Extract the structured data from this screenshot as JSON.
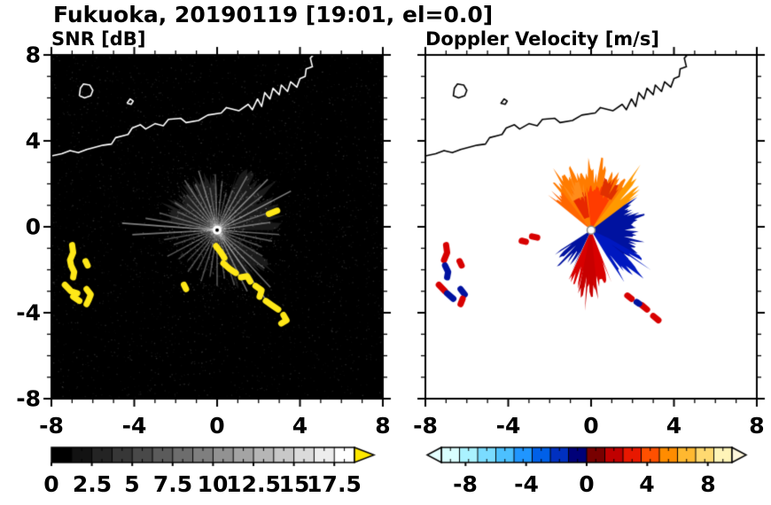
{
  "title": "Fukuoka, 20190119 [19:01, el=0.0]",
  "axes": {
    "y_tick_labels": [
      "8",
      "4",
      "0",
      "-4",
      "-8"
    ],
    "x_tick_labels": [
      "-8",
      "-4",
      "0",
      "4",
      "8"
    ]
  },
  "map": {
    "coastline": [
      [
        -8,
        3.3
      ],
      [
        -7.5,
        3.4
      ],
      [
        -7.1,
        3.55
      ],
      [
        -6.7,
        3.45
      ],
      [
        -6.3,
        3.6
      ],
      [
        -5.9,
        3.7
      ],
      [
        -5.5,
        3.8
      ],
      [
        -5.1,
        3.85
      ],
      [
        -4.9,
        4.15
      ],
      [
        -4.5,
        4.25
      ],
      [
        -4.3,
        4.3
      ],
      [
        -4.1,
        4.6
      ],
      [
        -3.7,
        4.75
      ],
      [
        -3.45,
        4.55
      ],
      [
        -3,
        4.8
      ],
      [
        -2.6,
        4.7
      ],
      [
        -2.35,
        5
      ],
      [
        -1.75,
        5.05
      ],
      [
        -1.5,
        4.85
      ],
      [
        -0.9,
        4.95
      ],
      [
        -0.45,
        5.2
      ],
      [
        0.2,
        5.3
      ],
      [
        0.45,
        5.55
      ],
      [
        1.05,
        5.4
      ],
      [
        1.5,
        5.7
      ],
      [
        1.7,
        5.45
      ],
      [
        1.95,
        5.95
      ],
      [
        2.15,
        5.6
      ],
      [
        2.3,
        6.25
      ],
      [
        2.55,
        5.95
      ],
      [
        2.7,
        6.45
      ],
      [
        3,
        6.15
      ],
      [
        3.1,
        6.6
      ],
      [
        3.4,
        6.3
      ],
      [
        3.55,
        6.75
      ],
      [
        3.85,
        6.5
      ],
      [
        4,
        6.9
      ],
      [
        4.25,
        7
      ],
      [
        4.3,
        7.35
      ],
      [
        4.6,
        7.45
      ],
      [
        4.5,
        7.85
      ],
      [
        4.65,
        8
      ]
    ],
    "island": [
      [
        -6.65,
        6.1
      ],
      [
        -6.4,
        6
      ],
      [
        -6.1,
        6.1
      ],
      [
        -6,
        6.35
      ],
      [
        -6.15,
        6.6
      ],
      [
        -6.45,
        6.65
      ],
      [
        -6.6,
        6.45
      ],
      [
        -6.65,
        6.1
      ]
    ],
    "islet": [
      [
        -4.35,
        5.75
      ],
      [
        -4.15,
        5.7
      ],
      [
        -4.05,
        5.85
      ],
      [
        -4.2,
        5.95
      ],
      [
        -4.35,
        5.75
      ]
    ]
  },
  "chart_data": [
    {
      "type": "heatmap",
      "variant": "radar-ppi",
      "title": "SNR [dB]",
      "units": "dB",
      "xlim": [
        -8,
        8
      ],
      "ylim": [
        -8,
        8
      ],
      "xticks": [
        -8,
        -4,
        0,
        4,
        8
      ],
      "yticks": [
        -8,
        -4,
        0,
        4,
        8
      ],
      "background": "#000000",
      "coast_color": "#ffffff",
      "radar_center": [
        0,
        -0.15
      ],
      "colorbar": {
        "range": [
          0,
          18.75
        ],
        "ticks": [
          0,
          2.5,
          5,
          7.5,
          10,
          12.5,
          15,
          17.5
        ],
        "tick_labels": [
          "0",
          "2.5",
          "5",
          "7.5",
          "10",
          "12.5",
          "15",
          "17.5"
        ],
        "colors": [
          "#000000",
          "#121212",
          "#242424",
          "#373737",
          "#494949",
          "#5b5b5b",
          "#6d6d6d",
          "#7f7f7f",
          "#929292",
          "#a4a4a4",
          "#b6b6b6",
          "#c8c8c8",
          "#dbdbdb",
          "#ededed",
          "#ffffff"
        ],
        "overflow_color": "#ffe800"
      },
      "haze": [
        [
          0,
          70,
          3.2,
          0.1
        ],
        [
          90,
          170,
          2.6,
          0.12
        ],
        [
          290,
          330,
          3.0,
          0.1
        ]
      ],
      "spokes": [
        [
          8,
          2.6,
          0.4
        ],
        [
          18,
          3.1,
          0.35
        ],
        [
          27,
          4.0,
          0.5
        ],
        [
          36,
          2.7,
          0.3
        ],
        [
          44,
          3.4,
          0.45
        ],
        [
          52,
          2.3,
          0.3
        ],
        [
          60,
          2.9,
          0.38
        ],
        [
          68,
          2.0,
          0.28
        ],
        [
          76,
          1.8,
          0.25
        ],
        [
          84,
          2.3,
          0.32
        ],
        [
          92,
          2.6,
          0.3
        ],
        [
          100,
          2.0,
          0.28
        ],
        [
          108,
          2.9,
          0.4
        ],
        [
          116,
          2.4,
          0.32
        ],
        [
          124,
          2.8,
          0.36
        ],
        [
          132,
          2.2,
          0.3
        ],
        [
          140,
          1.9,
          0.26
        ],
        [
          148,
          2.4,
          0.3
        ],
        [
          156,
          2.1,
          0.28
        ],
        [
          164,
          2.9,
          0.34
        ],
        [
          171,
          3.5,
          0.4
        ],
        [
          176,
          4.6,
          0.5
        ],
        [
          183,
          4.1,
          0.44
        ],
        [
          190,
          2.6,
          0.3
        ],
        [
          198,
          2.2,
          0.27
        ],
        [
          207,
          2.7,
          0.33
        ],
        [
          216,
          2.3,
          0.3
        ],
        [
          225,
          2.0,
          0.27
        ],
        [
          234,
          2.4,
          0.3
        ],
        [
          243,
          2.1,
          0.28
        ],
        [
          252,
          2.5,
          0.3
        ],
        [
          261,
          2.2,
          0.3
        ],
        [
          270,
          2.6,
          0.33
        ],
        [
          279,
          2.3,
          0.28
        ],
        [
          288,
          2.7,
          0.3
        ],
        [
          297,
          3.2,
          0.4
        ],
        [
          306,
          4.3,
          0.5
        ],
        [
          314,
          3.7,
          0.42
        ],
        [
          322,
          2.9,
          0.34
        ],
        [
          331,
          2.5,
          0.3
        ],
        [
          340,
          2.3,
          0.3
        ],
        [
          349,
          2.7,
          0.34
        ],
        [
          356,
          3.0,
          0.38
        ]
      ],
      "strong_echo_color": "#ffe818",
      "strong_echoes": [
        [
          [
            -7,
            -0.85
          ],
          [
            -6.95,
            -1.2
          ],
          [
            -7.1,
            -1.55
          ],
          [
            -7.05,
            -1.8
          ],
          [
            -6.9,
            -2.1
          ],
          [
            -6.95,
            -2.35
          ]
        ],
        [
          [
            -6.35,
            -1.6
          ],
          [
            -6.25,
            -1.8
          ]
        ],
        [
          [
            -7.35,
            -2.7
          ],
          [
            -7.05,
            -3
          ],
          [
            -6.75,
            -3.1
          ]
        ],
        [
          [
            -6.95,
            -3.25
          ],
          [
            -6.65,
            -3.45
          ]
        ],
        [
          [
            -6.3,
            -2.9
          ],
          [
            -6.1,
            -3.15
          ],
          [
            -6.2,
            -3.4
          ],
          [
            -6.3,
            -3.6
          ]
        ],
        [
          [
            2.5,
            0.6
          ],
          [
            2.9,
            0.75
          ]
        ],
        [
          [
            -1.6,
            -2.7
          ],
          [
            -1.5,
            -2.9
          ]
        ],
        [
          [
            -0.05,
            -0.9
          ],
          [
            0.15,
            -1.15
          ],
          [
            0.35,
            -1.45
          ]
        ],
        [
          [
            0.3,
            -1.7
          ],
          [
            0.6,
            -1.95
          ],
          [
            0.9,
            -2.15
          ]
        ],
        [
          [
            1.15,
            -2.35
          ],
          [
            1.45,
            -2.3
          ],
          [
            1.6,
            -2.55
          ]
        ],
        [
          [
            1.85,
            -2.75
          ],
          [
            2.15,
            -2.95
          ],
          [
            2.05,
            -3.25
          ]
        ],
        [
          [
            2.35,
            -3.45
          ],
          [
            2.65,
            -3.65
          ],
          [
            2.95,
            -3.85
          ]
        ],
        [
          [
            3.2,
            -4.1
          ],
          [
            3.35,
            -4.35
          ],
          [
            3.1,
            -4.5
          ]
        ]
      ]
    },
    {
      "type": "heatmap",
      "variant": "radar-ppi",
      "title": "Doppler Velocity [m/s]",
      "units": "m/s",
      "xlim": [
        -8,
        8
      ],
      "ylim": [
        -8,
        8
      ],
      "xticks": [
        -8,
        -4,
        0,
        4,
        8
      ],
      "yticks": [
        -8,
        -4,
        0,
        4,
        8
      ],
      "background": "#ffffff",
      "coast_color": "#000000",
      "radar_center": [
        0,
        -0.15
      ],
      "colorbar": {
        "range": [
          -9.6,
          9.6
        ],
        "ticks": [
          -8,
          -4,
          0,
          4,
          8
        ],
        "tick_labels": [
          "-8",
          "-4",
          "0",
          "4",
          "8"
        ],
        "colors": [
          "#d8ffff",
          "#aaf2ff",
          "#7adcff",
          "#4cc0ff",
          "#2096ff",
          "#0060e8",
          "#0030c0",
          "#000078",
          "#780000",
          "#c00000",
          "#e81800",
          "#ff5000",
          "#ff8c00",
          "#ffb830",
          "#ffd970",
          "#fff4b8"
        ],
        "under_color": "#e4ffff",
        "over_color": "#fff8dc"
      },
      "fans": [
        {
          "a0": 50,
          "a1": 130,
          "r1": 2.9,
          "color": "#ff7b00",
          "jag": 0.45
        },
        {
          "a0": 58,
          "a1": 96,
          "r1": 2.1,
          "color": "#ff3c00",
          "jag": 0.35
        },
        {
          "a0": 98,
          "a1": 122,
          "r0": 0.6,
          "r1": 1.9,
          "color": "#e82800",
          "jag": 0.35
        },
        {
          "a0": 55,
          "a1": 75,
          "r0": 1.7,
          "r1": 2.55,
          "color": "#e03000",
          "jag": 0.3
        },
        {
          "a0": 100,
          "a1": 126,
          "r0": 1.6,
          "r1": 2.4,
          "color": "#ff8c1a",
          "jag": 0.5
        },
        {
          "a0": -38,
          "a1": 42,
          "r1": 2.3,
          "color": "#0012a0",
          "jag": 0.4
        },
        {
          "a0": -58,
          "a1": -24,
          "r1": 2.95,
          "color": "#0018c0",
          "jag": 0.75
        },
        {
          "a0": 245,
          "a1": 292,
          "r1": 2.7,
          "color": "#d80000",
          "jag": 0.55
        },
        {
          "a0": 258,
          "a1": 276,
          "r1": 3.25,
          "color": "#c80000",
          "jag": 0.6
        },
        {
          "a0": 212,
          "a1": 244,
          "r1": 2.1,
          "color": "#0012a0",
          "jag": 0.6
        },
        {
          "a0": 36,
          "a1": 52,
          "r1": 3.3,
          "color": "#ff9900",
          "jag": 0.55
        },
        {
          "a0": 128,
          "a1": 142,
          "r1": 2.25,
          "color": "#ff6600",
          "jag": 0.45
        }
      ],
      "blobs": [
        {
          "pts": [
            [
              -7,
              -0.85
            ],
            [
              -6.95,
              -1.2
            ],
            [
              -7.1,
              -1.55
            ]
          ],
          "color": "#d80000"
        },
        {
          "pts": [
            [
              -7.05,
              -1.8
            ],
            [
              -6.9,
              -2.1
            ],
            [
              -6.95,
              -2.35
            ]
          ],
          "color": "#0012a0"
        },
        {
          "pts": [
            [
              -6.35,
              -1.6
            ],
            [
              -6.25,
              -1.8
            ]
          ],
          "color": "#d80000"
        },
        {
          "pts": [
            [
              -7.35,
              -2.7
            ],
            [
              -7.05,
              -3
            ]
          ],
          "color": "#d80000"
        },
        {
          "pts": [
            [
              -6.95,
              -3.1
            ],
            [
              -6.65,
              -3.35
            ]
          ],
          "color": "#0012a0"
        },
        {
          "pts": [
            [
              -6.3,
              -2.9
            ],
            [
              -6.1,
              -3.15
            ]
          ],
          "color": "#0012a0"
        },
        {
          "pts": [
            [
              -6.2,
              -3.35
            ],
            [
              -6.3,
              -3.6
            ]
          ],
          "color": "#d80000"
        },
        {
          "pts": [
            [
              -2.85,
              -0.45
            ],
            [
              -2.6,
              -0.5
            ]
          ],
          "color": "#d80000"
        },
        {
          "pts": [
            [
              -3.35,
              -0.65
            ],
            [
              -3.15,
              -0.7
            ]
          ],
          "color": "#d80000"
        },
        {
          "pts": [
            [
              1.75,
              -3.2
            ],
            [
              1.95,
              -3.35
            ]
          ],
          "color": "#d80000"
        },
        {
          "pts": [
            [
              2.45,
              -3.65
            ],
            [
              2.7,
              -3.85
            ]
          ],
          "color": "#d80000"
        },
        {
          "pts": [
            [
              3,
              -4.15
            ],
            [
              3.25,
              -4.35
            ]
          ],
          "color": "#d80000"
        },
        {
          "pts": [
            [
              2.2,
              -3.5
            ],
            [
              2.32,
              -3.58
            ]
          ],
          "color": "#0012a0"
        }
      ]
    }
  ]
}
